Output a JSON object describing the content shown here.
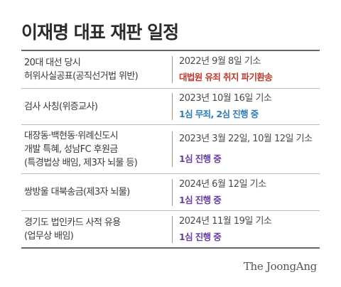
{
  "title": "이재명 대표 재판 일정",
  "colors": {
    "red": "#c0392b",
    "blue": "#2f7db8",
    "purple": "#6b3fa0"
  },
  "trials": [
    {
      "case_lines": [
        "20대 대선 당시",
        "허위사실공표(공직선거법 위반)"
      ],
      "indicted": "2022년 9월 8일 기소",
      "status": "대법원 유죄 취지 파기환송",
      "status_color": "#c0392b"
    },
    {
      "case_lines": [
        "검사 사칭(위증교사)"
      ],
      "indicted": "2023년 10월 16일 기소",
      "status": "1심 무죄, 2심 진행 중",
      "status_color": "#2f7db8"
    },
    {
      "case_lines": [
        "대장동·백현동·위례신도시",
        "개발 특혜, 성남FC 후원금",
        "(특경법상 배임, 제3자 뇌물 등)"
      ],
      "indicted": "2023년 3월 22일, 10월 12일 기소",
      "status": "1심 진행 중",
      "status_color": "#6b3fa0"
    },
    {
      "case_lines": [
        "쌍방울 대북송금(제3자 뇌물)"
      ],
      "indicted": "2024년 6월 12일 기소",
      "status": "1심 진행 중",
      "status_color": "#6b3fa0"
    },
    {
      "case_lines": [
        "경기도 법인카드 사적 유용",
        "(업무상 배임)"
      ],
      "indicted": "2024년 11월 19일 기소",
      "status": "1심 진행 중",
      "status_color": "#6b3fa0"
    }
  ],
  "brand": "The JoongAng"
}
